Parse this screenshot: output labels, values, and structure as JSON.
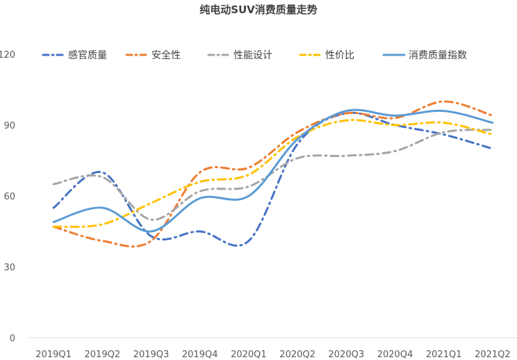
{
  "chart_data": {
    "type": "line",
    "title": "纯电动SUV消费质量走势",
    "xlabel": "",
    "ylabel": "",
    "categories": [
      "2019Q1",
      "2019Q2",
      "2019Q3",
      "2019Q4",
      "2020Q1",
      "2020Q2",
      "2020Q3",
      "2020Q4",
      "2021Q1",
      "2021Q2"
    ],
    "ylim": [
      0,
      120
    ],
    "yticks": [
      0,
      30,
      60,
      90,
      120
    ],
    "grid": false,
    "legend_position": "top",
    "series": [
      {
        "name": "感官质量",
        "color": "#4472C4",
        "dash": "dashdot",
        "values": [
          55,
          70,
          43,
          45,
          41,
          82,
          95,
          90,
          86,
          80
        ]
      },
      {
        "name": "安全性",
        "color": "#ED7D31",
        "dash": "dashdot",
        "values": [
          47,
          41,
          41,
          70,
          72,
          87,
          95,
          93,
          100,
          94
        ]
      },
      {
        "name": "性能设计",
        "color": "#A5A5A5",
        "dash": "dashdot",
        "values": [
          65,
          68,
          50,
          62,
          64,
          76,
          77,
          79,
          87,
          88
        ]
      },
      {
        "name": "性价比",
        "color": "#FFC000",
        "dash": "dashdot",
        "values": [
          47,
          48,
          57,
          66,
          69,
          85,
          92,
          90,
          91,
          86
        ]
      },
      {
        "name": "消费质量指数",
        "color": "#5B9BD5",
        "dash": "solid",
        "values": [
          49,
          55,
          45,
          59,
          60,
          84,
          96,
          94,
          96,
          91
        ]
      }
    ]
  }
}
